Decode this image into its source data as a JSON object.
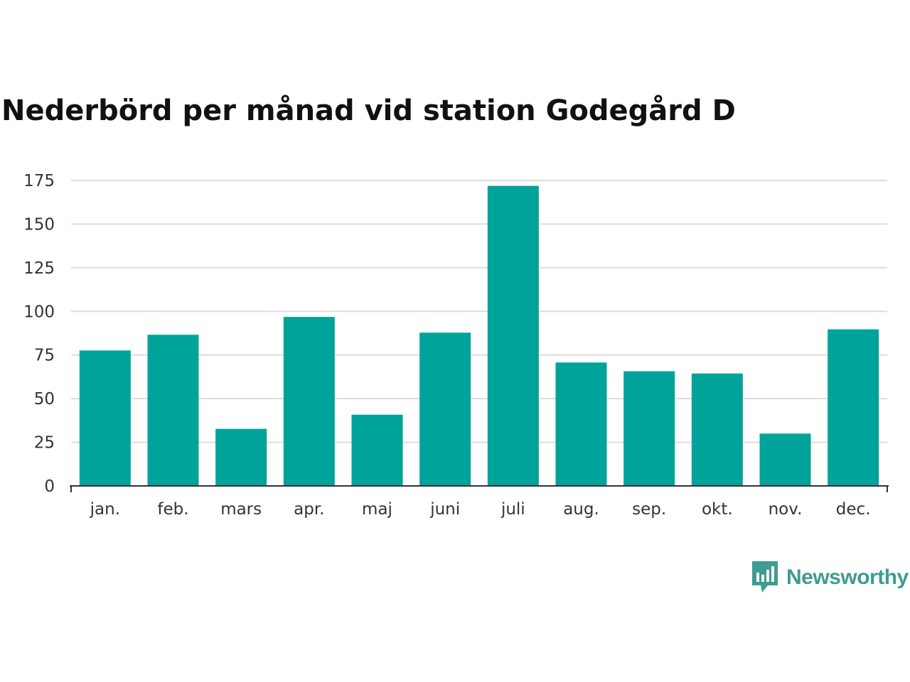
{
  "chart_data": {
    "type": "bar",
    "title": "Nederbörd per månad vid station Godegård D",
    "xlabel": "",
    "ylabel": "",
    "categories": [
      "jan.",
      "feb.",
      "mars",
      "apr.",
      "maj",
      "juni",
      "juli",
      "aug.",
      "sep.",
      "okt.",
      "nov.",
      "dec."
    ],
    "values": [
      77.6,
      86.6,
      32.7,
      96.8,
      40.8,
      87.8,
      171.9,
      70.7,
      65.7,
      64.4,
      30.0,
      89.7
    ],
    "ylim": [
      0,
      175
    ],
    "yticks": [
      0,
      25,
      50,
      75,
      100,
      125,
      150,
      175
    ],
    "grid": true,
    "legend": "none",
    "colors": {
      "bar": "#00a39a",
      "grid": "#dddddd",
      "axis": "#333333"
    }
  },
  "branding": {
    "logo_text": "Newsworthy",
    "logo_color": "#3f9c90",
    "logo_icon": "chart-speech-bubble-icon"
  }
}
